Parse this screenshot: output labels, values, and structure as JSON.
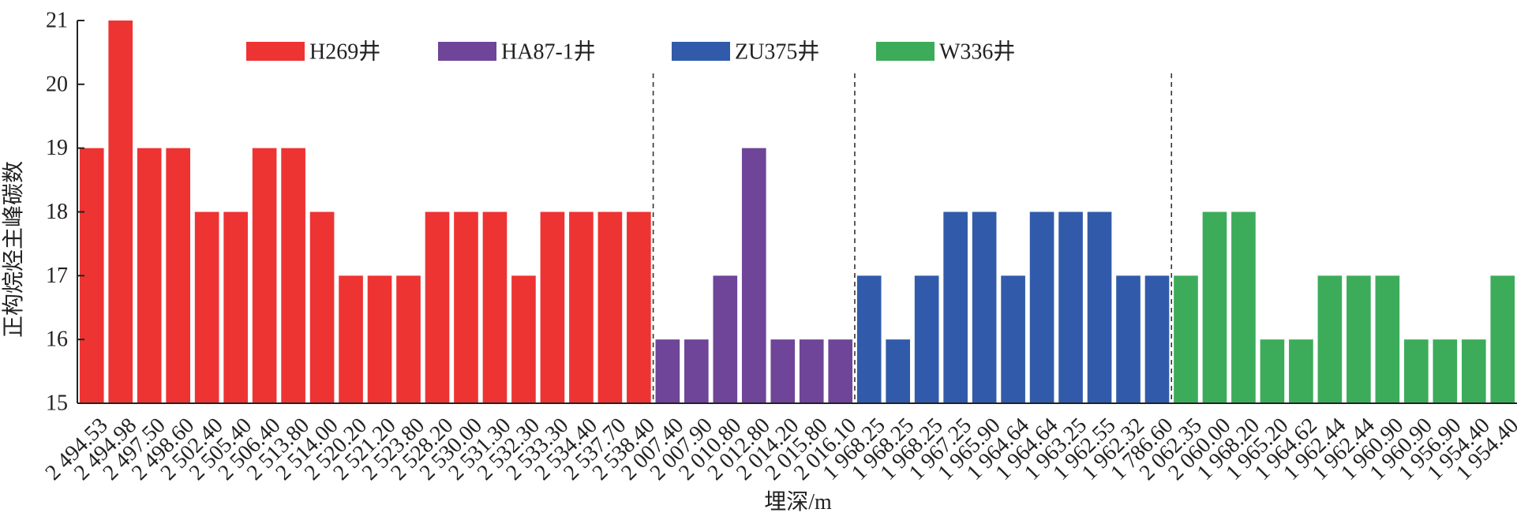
{
  "chart_data": {
    "type": "bar",
    "xlabel": "埋深/m",
    "ylabel": "正构烷烃主峰碳数",
    "ylim": [
      15,
      21
    ],
    "yticks": [
      15,
      16,
      17,
      18,
      19,
      20,
      21
    ],
    "grid": false,
    "legend_position": "top",
    "series": [
      {
        "name": "H269井",
        "color": "#ee3333",
        "categories": [
          "2 494.53",
          "2 494.98",
          "2 497.50",
          "2 498.60",
          "2 502.40",
          "2 505.40",
          "2 506.40",
          "2 513.80",
          "2 514.00",
          "2 520.20",
          "2 521.20",
          "2 523.80",
          "2 528.20",
          "2 530.00",
          "2 531.30",
          "2 532.30",
          "2 533.30",
          "2 534.40",
          "2 537.70",
          "2 538.40"
        ],
        "values": [
          19,
          21,
          19,
          19,
          18,
          18,
          19,
          19,
          18,
          17,
          17,
          17,
          18,
          18,
          18,
          17,
          18,
          18,
          18,
          18
        ]
      },
      {
        "name": "HA87-1井",
        "color": "#6e4599",
        "categories": [
          "2 007.40",
          "2 007.90",
          "2 010.80",
          "2 012.80",
          "2 014.20",
          "2 015.80",
          "2 016.10"
        ],
        "values": [
          16,
          16,
          17,
          19,
          16,
          16,
          16
        ]
      },
      {
        "name": "ZU375井",
        "color": "#315baa",
        "categories": [
          "1 968.25",
          "1 968.25",
          "1 968.25",
          "1 967.25",
          "1 965.90",
          "1 964.64",
          "1 964.64",
          "1 963.25",
          "1 962.55",
          "1 962.32",
          "1 786.60"
        ],
        "values": [
          17,
          16,
          17,
          18,
          18,
          17,
          18,
          18,
          18,
          17,
          17
        ]
      },
      {
        "name": "W336井",
        "color": "#3cac5a",
        "categories": [
          "2 062.35",
          "2 060.00",
          "1 968.20",
          "1 965.20",
          "1 964.62",
          "1 962.44",
          "1 962.44",
          "1 960.90",
          "1 960.90",
          "1 956.90",
          "1 954.40",
          "1 954.40"
        ],
        "values": [
          17,
          18,
          18,
          16,
          16,
          17,
          17,
          17,
          16,
          16,
          16,
          17
        ]
      }
    ]
  }
}
